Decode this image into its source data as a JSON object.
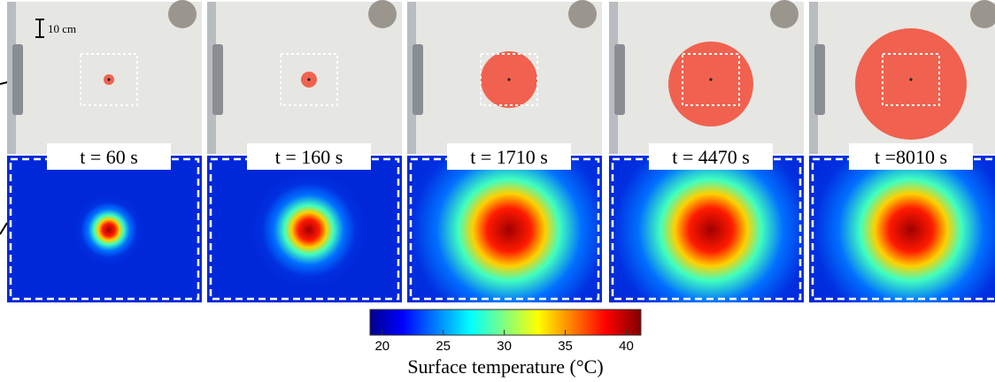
{
  "scale_bar": "10 cm",
  "panels": [
    "t = 60 s",
    "t = 160 s",
    "t = 1710 s",
    "t = 4470 s",
    "t =8010 s"
  ],
  "colorbar": {
    "range": [
      19,
      41.2
    ],
    "ticks": [
      20,
      25,
      30,
      35,
      40
    ],
    "label": "Surface temperature (°C)"
  }
}
